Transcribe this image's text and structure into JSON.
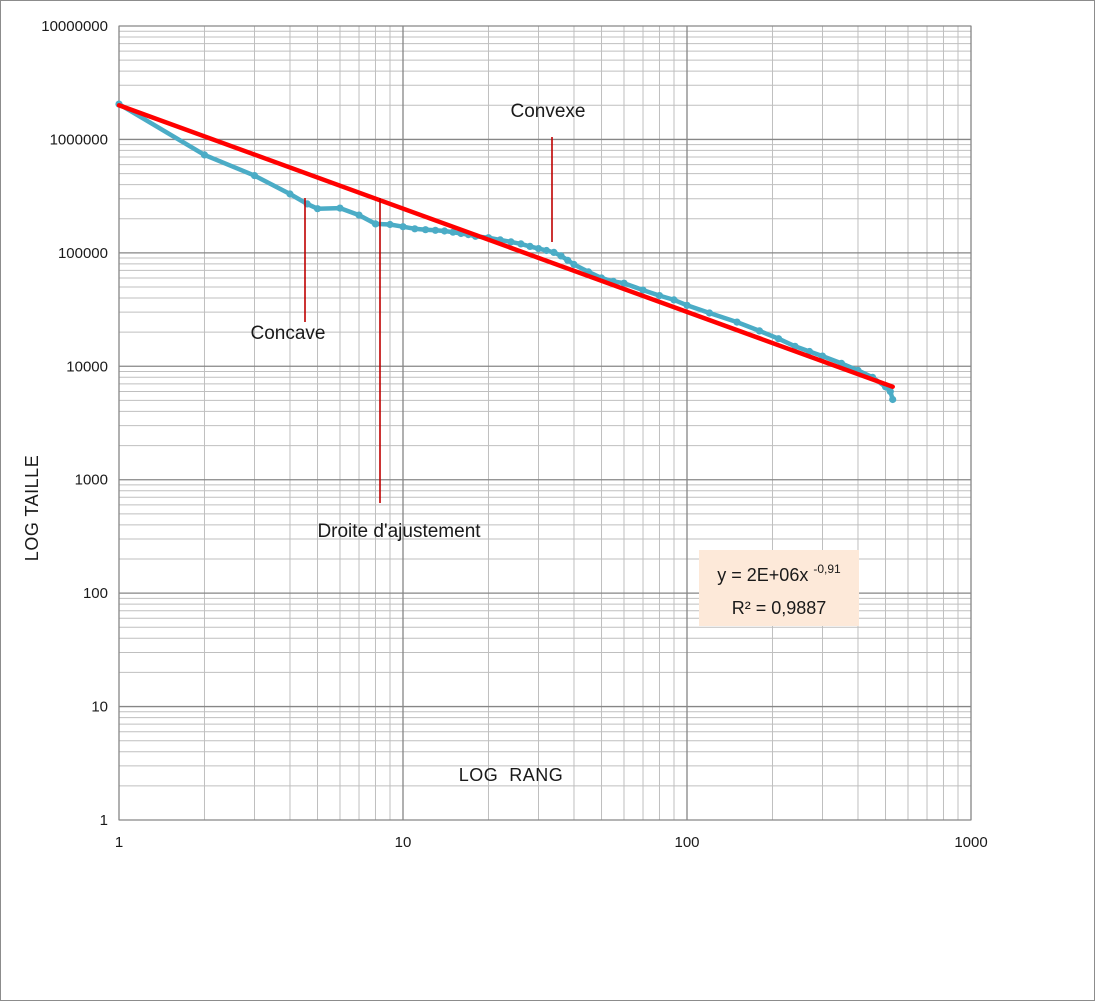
{
  "chart_data": {
    "type": "line",
    "xscale": "log",
    "yscale": "log",
    "xlim": [
      1,
      1000
    ],
    "ylim": [
      1,
      10000000
    ],
    "xlabel": "LOG  RANG",
    "ylabel": "LOG  TAILLE",
    "grid": true,
    "x_ticks": [
      "1",
      "10",
      "100",
      "1000"
    ],
    "y_ticks": [
      "1",
      "10",
      "100",
      "1000",
      "10000",
      "100000",
      "1000000",
      "10000000"
    ],
    "series": [
      {
        "color": "#4bacc6",
        "points": [
          [
            1,
            2050000
          ],
          [
            2,
            730000
          ],
          [
            3,
            480000
          ],
          [
            4,
            330000
          ],
          [
            4.6,
            270000
          ],
          [
            5,
            245000
          ],
          [
            6,
            248000
          ],
          [
            7,
            215000
          ],
          [
            8,
            180000
          ],
          [
            9,
            178000
          ],
          [
            10,
            170000
          ],
          [
            11,
            163000
          ],
          [
            12,
            160000
          ],
          [
            13,
            158000
          ],
          [
            14,
            156000
          ],
          [
            15,
            152000
          ],
          [
            16,
            148000
          ],
          [
            17,
            145000
          ],
          [
            18,
            140000
          ],
          [
            20,
            136000
          ],
          [
            22,
            130000
          ],
          [
            24,
            125000
          ],
          [
            26,
            120000
          ],
          [
            28,
            114000
          ],
          [
            30,
            109000
          ],
          [
            32,
            105000
          ],
          [
            34,
            101000
          ],
          [
            36,
            94000
          ],
          [
            38,
            86000
          ],
          [
            40,
            79000
          ],
          [
            45,
            68000
          ],
          [
            50,
            60000
          ],
          [
            55,
            56000
          ],
          [
            60,
            54000
          ],
          [
            70,
            47000
          ],
          [
            80,
            42000
          ],
          [
            90,
            38500
          ],
          [
            100,
            34500
          ],
          [
            120,
            29500
          ],
          [
            150,
            24500
          ],
          [
            180,
            20500
          ],
          [
            210,
            17500
          ],
          [
            240,
            15000
          ],
          [
            270,
            13500
          ],
          [
            300,
            12300
          ],
          [
            350,
            10600
          ],
          [
            400,
            9200
          ],
          [
            450,
            8000
          ],
          [
            500,
            6600
          ],
          [
            520,
            6000
          ],
          [
            530,
            5100
          ]
        ]
      },
      {
        "color": "#ff0000",
        "trendline": true,
        "points": [
          [
            1,
            2000000
          ],
          [
            530,
            6600
          ]
        ]
      }
    ],
    "annotations": [
      {
        "text": "Convexe",
        "target": [
          35,
          100000
        ]
      },
      {
        "text": "Concave",
        "target": [
          4.6,
          280000
        ]
      },
      {
        "text": "Droite d'ajustement",
        "target": [
          8.2,
          300000
        ]
      }
    ],
    "equation": {
      "line1_prefix": "y = 2E+06x",
      "line1_exponent": "-0,91",
      "line2": "R² = 0,9887"
    }
  },
  "colors": {
    "data_line": "#4bacc6",
    "trend_line": "#ff0000",
    "pointer_lines": "#c00000",
    "equation_box": "#fde9d9",
    "grid": "#bfbfbf",
    "grid_major": "#868686"
  }
}
